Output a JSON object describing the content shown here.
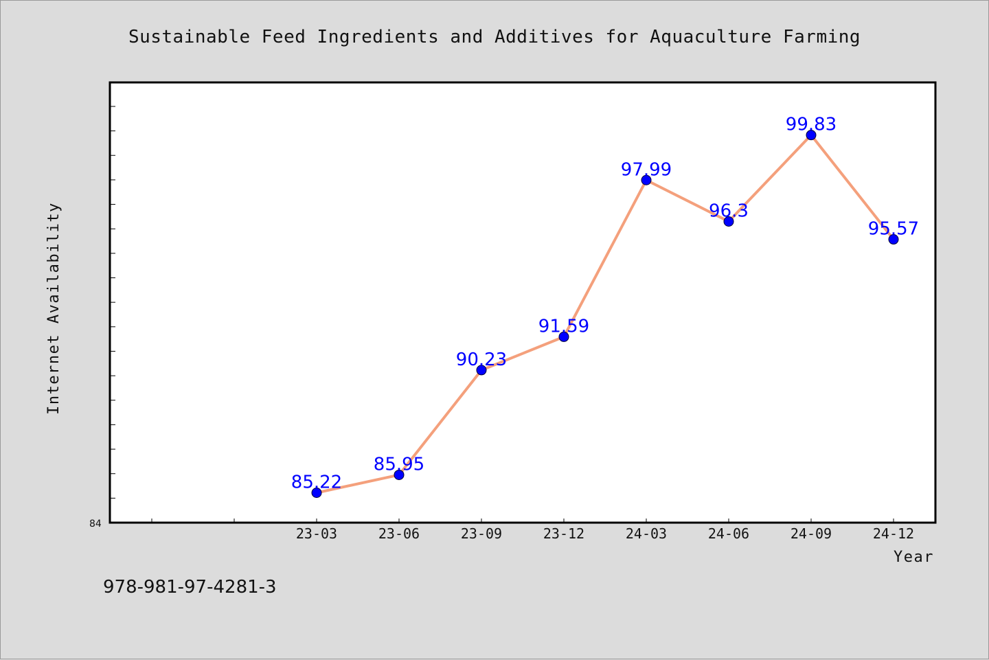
{
  "chart_data": {
    "type": "line",
    "title": "Sustainable Feed Ingredients and Additives for Aquaculture Farming",
    "xlabel": "Year",
    "ylabel": "Internet Availability",
    "categories": [
      "23-03",
      "23-06",
      "23-09",
      "23-12",
      "24-03",
      "24-06",
      "24-09",
      "24-12"
    ],
    "series": [
      {
        "values": [
          85.22,
          85.95,
          90.23,
          91.59,
          97.99,
          96.3,
          99.83,
          95.57
        ],
        "data_labels": [
          "85.22",
          "85.95",
          "90.23",
          "91.59",
          "97.99",
          "96.3",
          "99.83",
          "95.57"
        ]
      }
    ],
    "y_axis_min_label": "84",
    "ylim": [
      84,
      102
    ],
    "grid": false,
    "legend": "none",
    "colors": {
      "line": "#f4a07c",
      "marker": "#0000ff",
      "data_label": "#0000ff",
      "plot_background": "#ffffff",
      "page_background": "#dcdcdc"
    }
  },
  "footer": {
    "code": "978-981-97-4281-3"
  }
}
